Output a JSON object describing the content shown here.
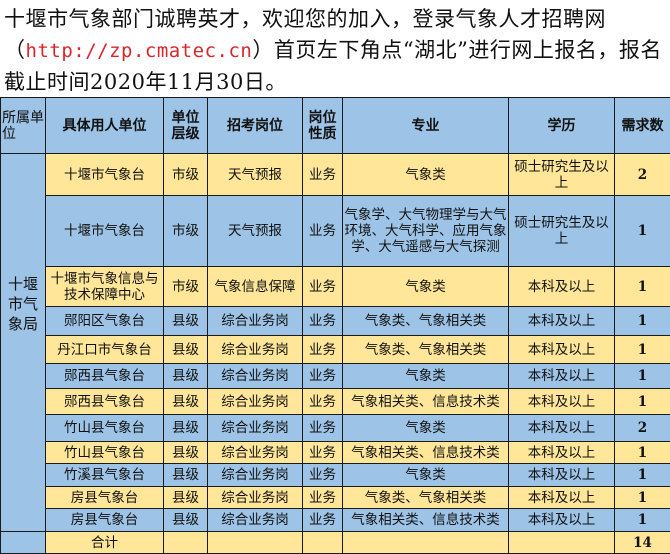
{
  "intro": {
    "text1": "十堰市气象部门诚聘英才，欢迎您的加入，登录气象人才招聘网（",
    "url": "http://zp.cmatec.cn",
    "text2": "）首页左下角点“湖北”进行网上报名，报名截止时间2020年11月30日。"
  },
  "colors": {
    "header": "#9dc3e6",
    "row_blue": "#9dc3e6",
    "row_yellow": "#ffe699",
    "url": "#d9262b"
  },
  "table": {
    "headers": [
      "所属单位",
      "具体用人单位",
      "单位层级",
      "招考岗位",
      "岗位性质",
      "专业",
      "学历",
      "需求数"
    ],
    "org": "十堰市气象局",
    "rows": [
      [
        "十堰市气象台",
        "市级",
        "天气预报",
        "业务",
        "气象类",
        "硕士研究生及以上",
        "2"
      ],
      [
        "十堰市气象台",
        "市级",
        "天气预报",
        "业务",
        "气象学、大气物理学与大气环境、大气科学、应用气象学、大气遥感与大气探测",
        "硕士研究生及以上",
        "1"
      ],
      [
        "十堰市气象信息与技术保障中心",
        "市级",
        "气象信息保障",
        "业务",
        "气象类",
        "本科及以上",
        "1"
      ],
      [
        "郧阳区气象台",
        "县级",
        "综合业务岗",
        "业务",
        "气象类、气象相关类",
        "本科及以上",
        "1"
      ],
      [
        "丹江口市气象台",
        "县级",
        "综合业务岗",
        "业务",
        "气象类、气象相关类",
        "本科及以上",
        "1"
      ],
      [
        "郧西县气象台",
        "县级",
        "综合业务岗",
        "业务",
        "气象类",
        "本科及以上",
        "1"
      ],
      [
        "郧西县气象台",
        "县级",
        "综合业务岗",
        "业务",
        "气象相关类、信息技术类",
        "本科及以上",
        "1"
      ],
      [
        "竹山县气象台",
        "县级",
        "综合业务岗",
        "业务",
        "气象类",
        "本科及以上",
        "2"
      ],
      [
        "竹山县气象台",
        "县级",
        "综合业务岗",
        "业务",
        "气象相关类、信息技术类",
        "本科及以上",
        "1"
      ],
      [
        "竹溪县气象台",
        "县级",
        "综合业务岗",
        "业务",
        "气象类",
        "本科及以上",
        "1"
      ],
      [
        "房县气象台",
        "县级",
        "综合业务岗",
        "业务",
        "气象类、气象相关类",
        "本科及以上",
        "1"
      ],
      [
        "房县气象台",
        "县级",
        "综合业务岗",
        "业务",
        "气象相关类、信息技术类",
        "本科及以上",
        "1"
      ]
    ],
    "total_label": "合计",
    "total": "14"
  }
}
